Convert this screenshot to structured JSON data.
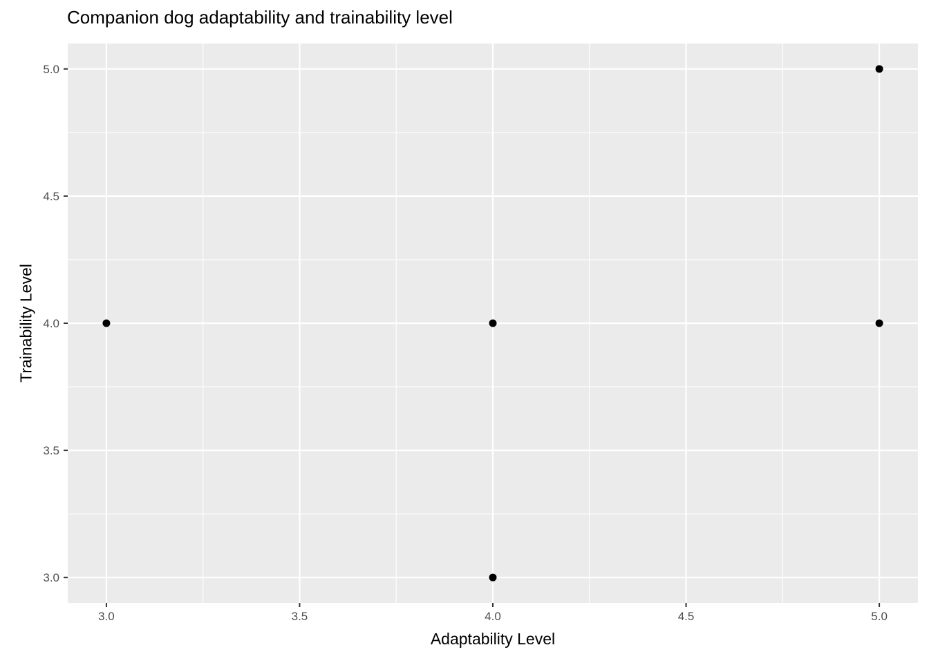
{
  "chart_data": {
    "type": "scatter",
    "title": "Companion dog adaptability and trainability level",
    "xlabel": "Adaptability Level",
    "ylabel": "Trainability Level",
    "xlim": [
      2.9,
      5.1
    ],
    "ylim": [
      2.9,
      5.1
    ],
    "x_ticks": [
      3.0,
      3.5,
      4.0,
      4.5,
      5.0
    ],
    "y_ticks": [
      3.0,
      3.5,
      4.0,
      4.5,
      5.0
    ],
    "x_tick_labels": [
      "3.0",
      "3.5",
      "4.0",
      "4.5",
      "5.0"
    ],
    "y_tick_labels": [
      "3.0",
      "3.5",
      "4.0",
      "4.5",
      "5.0"
    ],
    "grid": true,
    "points": [
      {
        "x": 3,
        "y": 4
      },
      {
        "x": 4,
        "y": 4
      },
      {
        "x": 4,
        "y": 3
      },
      {
        "x": 5,
        "y": 5
      },
      {
        "x": 5,
        "y": 4
      }
    ],
    "colors": {
      "panel_background": "#ebebeb",
      "grid": "#ffffff",
      "point": "#000000",
      "tick_text": "#4d4d4d",
      "tick_mark": "#333333"
    }
  }
}
